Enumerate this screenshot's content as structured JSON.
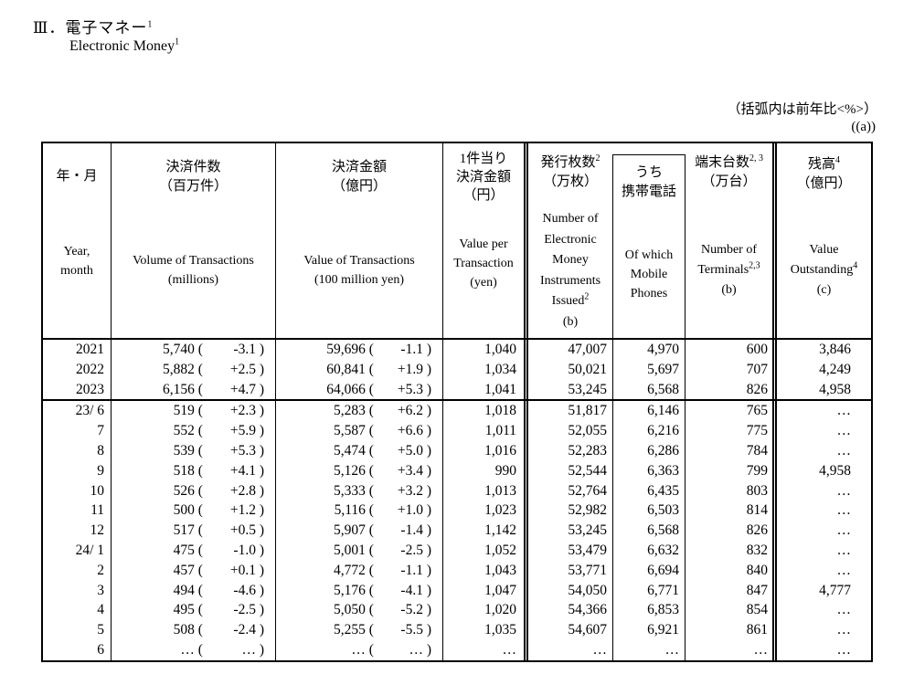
{
  "page": {
    "title_jp": "Ⅲ．電子マネー",
    "title_jp_sup": "1",
    "title_en": "Electronic Money",
    "title_en_sup": "1"
  },
  "notes": {
    "yoy": "（括弧内は前年比<%>）",
    "a": "((a))"
  },
  "table": {
    "header": {
      "c1": {
        "jp": "年・月",
        "en1": "Year,",
        "en2": "month"
      },
      "c2": {
        "jp1": "決済件数",
        "jp2": "（百万件）",
        "en1": "Volume of Transactions",
        "en2": "(millions)"
      },
      "c3": {
        "jp1": "決済金額",
        "jp2": "（億円）",
        "en1": "Value of Transactions",
        "en2": "(100 million yen)"
      },
      "c4": {
        "jp1": "1件当り",
        "jp2": "決済金額",
        "jp3": "（円）",
        "en1": "Value per",
        "en2": "Transaction",
        "en3": "(yen)"
      },
      "c5": {
        "jp1": "発行枚数",
        "jp1_sup": "2",
        "jp2": "（万枚）",
        "en1": "Number of",
        "en2": "Electronic",
        "en3": "Money",
        "en4": "Instruments",
        "en5": "Issued",
        "en5_sup": "2",
        "en6": "(b)"
      },
      "c6": {
        "jp1": "うち",
        "jp2": "携帯電話",
        "en1": "Of which",
        "en2": "Mobile",
        "en3": "Phones"
      },
      "c7": {
        "jp1": "端末台数",
        "jp1_sup": "2, 3",
        "jp2": "（万台）",
        "en1": "Number of",
        "en2": "Terminals",
        "en2_sup": "2,3",
        "en3": "(b)"
      },
      "c8": {
        "jp1": "残高",
        "jp1_sup": "4",
        "jp2": "（億円）",
        "en1": "Value",
        "en2": "Outstanding",
        "en2_sup": "4",
        "en3": "(c)"
      }
    },
    "annual_rows": [
      {
        "ym": "2021",
        "vol": "5,740",
        "volp": "-3.1",
        "val": "59,696",
        "valp": "-1.1",
        "per": "1,040",
        "iss": "47,007",
        "mob": "4,970",
        "ter": "600",
        "out": "3,846"
      },
      {
        "ym": "2022",
        "vol": "5,882",
        "volp": "+2.5",
        "val": "60,841",
        "valp": "+1.9",
        "per": "1,034",
        "iss": "50,021",
        "mob": "5,697",
        "ter": "707",
        "out": "4,249"
      },
      {
        "ym": "2023",
        "vol": "6,156",
        "volp": "+4.7",
        "val": "64,066",
        "valp": "+5.3",
        "per": "1,041",
        "iss": "53,245",
        "mob": "6,568",
        "ter": "826",
        "out": "4,958"
      }
    ],
    "monthly_rows": [
      {
        "ym": "23/ 6",
        "vol": "519",
        "volp": "+2.3",
        "val": "5,283",
        "valp": "+6.2",
        "per": "1,018",
        "iss": "51,817",
        "mob": "6,146",
        "ter": "765",
        "out": "…"
      },
      {
        "ym": "7",
        "vol": "552",
        "volp": "+5.9",
        "val": "5,587",
        "valp": "+6.6",
        "per": "1,011",
        "iss": "52,055",
        "mob": "6,216",
        "ter": "775",
        "out": "…"
      },
      {
        "ym": "8",
        "vol": "539",
        "volp": "+5.3",
        "val": "5,474",
        "valp": "+5.0",
        "per": "1,016",
        "iss": "52,283",
        "mob": "6,286",
        "ter": "784",
        "out": "…"
      },
      {
        "ym": "9",
        "vol": "518",
        "volp": "+4.1",
        "val": "5,126",
        "valp": "+3.4",
        "per": "990",
        "iss": "52,544",
        "mob": "6,363",
        "ter": "799",
        "out": "4,958"
      },
      {
        "ym": "10",
        "vol": "526",
        "volp": "+2.8",
        "val": "5,333",
        "valp": "+3.2",
        "per": "1,013",
        "iss": "52,764",
        "mob": "6,435",
        "ter": "803",
        "out": "…"
      },
      {
        "ym": "11",
        "vol": "500",
        "volp": "+1.2",
        "val": "5,116",
        "valp": "+1.0",
        "per": "1,023",
        "iss": "52,982",
        "mob": "6,503",
        "ter": "814",
        "out": "…"
      },
      {
        "ym": "12",
        "vol": "517",
        "volp": "+0.5",
        "val": "5,907",
        "valp": "-1.4",
        "per": "1,142",
        "iss": "53,245",
        "mob": "6,568",
        "ter": "826",
        "out": "…"
      },
      {
        "ym": "24/ 1",
        "vol": "475",
        "volp": "-1.0",
        "val": "5,001",
        "valp": "-2.5",
        "per": "1,052",
        "iss": "53,479",
        "mob": "6,632",
        "ter": "832",
        "out": "…"
      },
      {
        "ym": "2",
        "vol": "457",
        "volp": "+0.1",
        "val": "4,772",
        "valp": "-1.1",
        "per": "1,043",
        "iss": "53,771",
        "mob": "6,694",
        "ter": "840",
        "out": "…"
      },
      {
        "ym": "3",
        "vol": "494",
        "volp": "-4.6",
        "val": "5,176",
        "valp": "-4.1",
        "per": "1,047",
        "iss": "54,050",
        "mob": "6,771",
        "ter": "847",
        "out": "4,777"
      },
      {
        "ym": "4",
        "vol": "495",
        "volp": "-2.5",
        "val": "5,050",
        "valp": "-5.2",
        "per": "1,020",
        "iss": "54,366",
        "mob": "6,853",
        "ter": "854",
        "out": "…"
      },
      {
        "ym": "5",
        "vol": "508",
        "volp": "-2.4",
        "val": "5,255",
        "valp": "-5.5",
        "per": "1,035",
        "iss": "54,607",
        "mob": "6,921",
        "ter": "861",
        "out": "…"
      },
      {
        "ym": "6",
        "vol": "…",
        "volp": "…",
        "val": "…",
        "valp": "…",
        "per": "…",
        "iss": "…",
        "mob": "…",
        "ter": "…",
        "out": "…"
      }
    ]
  }
}
